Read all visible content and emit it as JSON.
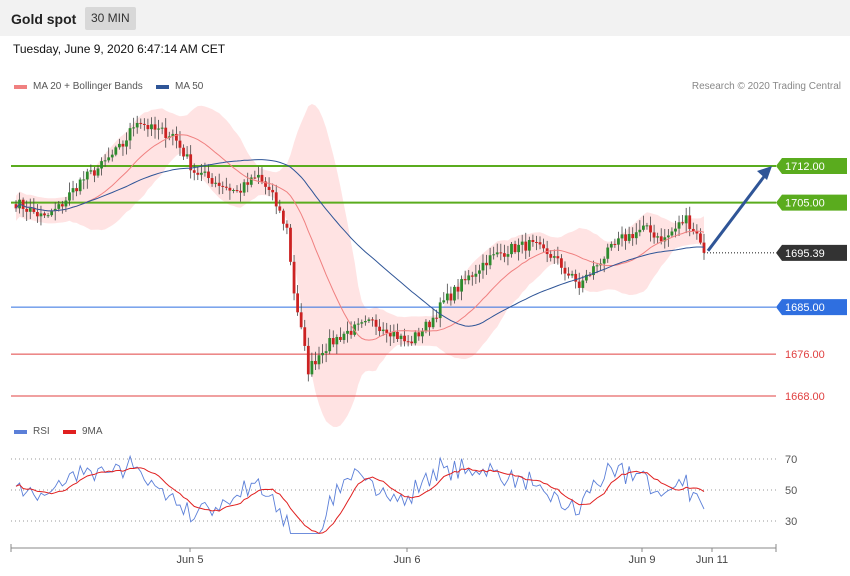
{
  "header": {
    "title": "Gold spot",
    "timeframe": "30 MIN",
    "datetime": "Tuesday, June 9, 2020 6:47:14 AM CET"
  },
  "legend": {
    "ma20": {
      "label": "MA 20 + Bollinger Bands",
      "color": "#f08080"
    },
    "ma50": {
      "label": "MA 50",
      "color": "#2f5597"
    },
    "credit": "Research © 2020 Trading Central"
  },
  "rsi_legend": {
    "rsi": {
      "label": "RSI",
      "color": "#5b7fd8"
    },
    "ma9": {
      "label": "9MA",
      "color": "#e02020"
    }
  },
  "chart_data": [
    {
      "type": "candlestick",
      "ylim": [
        1662,
        1734
      ],
      "x_ticks": [
        "Jun 5",
        "Jun 6",
        "Jun 9",
        "Jun 11"
      ],
      "current_price": "1695.39",
      "levels": [
        {
          "label": "1712.00",
          "value": 1712,
          "kind": "resistance",
          "color": "#5aac1e"
        },
        {
          "label": "1705.00",
          "value": 1705,
          "kind": "resistance",
          "color": "#5aac1e"
        },
        {
          "label": "1685.00",
          "value": 1685,
          "kind": "support",
          "color": "#2f6fe0"
        },
        {
          "label": "1676.00",
          "value": 1676,
          "kind": "support",
          "color": "#e04040"
        },
        {
          "label": "1668.00",
          "value": 1668,
          "kind": "support",
          "color": "#e04040"
        }
      ],
      "forecast_arrow": {
        "from": 1695.39,
        "to": 1712
      },
      "colors": {
        "up": "#2e8b2e",
        "down": "#cc2222",
        "band": "#ffd9d9",
        "ma20": "#f08080",
        "ma50": "#2f5597"
      }
    },
    {
      "type": "line",
      "title": "RSI",
      "ylim": [
        20,
        80
      ],
      "reference_levels": [
        70,
        50,
        30
      ],
      "series": [
        {
          "name": "RSI",
          "color": "#5b7fd8"
        },
        {
          "name": "9MA",
          "color": "#e02020"
        }
      ]
    }
  ]
}
